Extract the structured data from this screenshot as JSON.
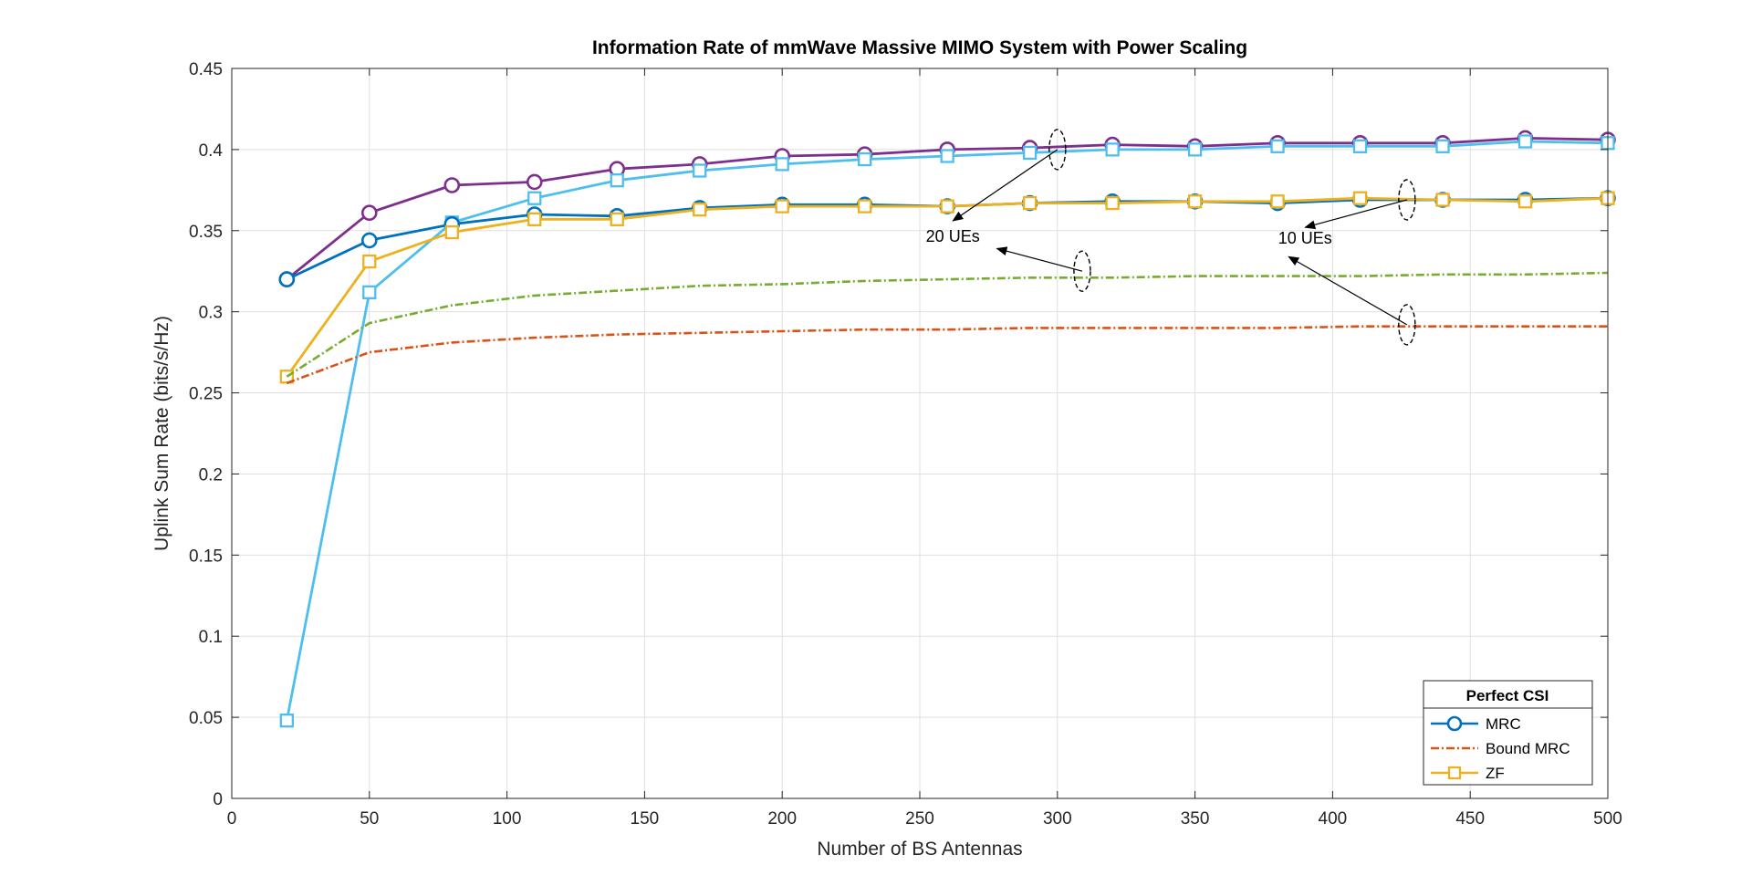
{
  "chart_data": {
    "type": "line",
    "title": "Information Rate of mmWave Massive MIMO System with Power Scaling",
    "xlabel": "Number of BS Antennas",
    "ylabel": "Uplink Sum Rate (bits/s/Hz)",
    "xlim": [
      0,
      500
    ],
    "ylim": [
      0,
      0.45
    ],
    "xticks": [
      0,
      50,
      100,
      150,
      200,
      250,
      300,
      350,
      400,
      450,
      500
    ],
    "yticks": [
      0,
      0.05,
      0.1,
      0.15,
      0.2,
      0.25,
      0.3,
      0.35,
      0.4,
      0.45
    ],
    "xtick_labels": [
      "0",
      "50",
      "100",
      "150",
      "200",
      "250",
      "300",
      "350",
      "400",
      "450",
      "500"
    ],
    "ytick_labels": [
      "0",
      "0.05",
      "0.1",
      "0.15",
      "0.2",
      "0.25",
      "0.3",
      "0.35",
      "0.4",
      "0.45"
    ],
    "grid": true,
    "legend": {
      "title": "Perfect CSI",
      "placement": "bottom-right",
      "entries": [
        {
          "label": "MRC",
          "color": "#0072BD",
          "marker": "circle",
          "dash": "solid"
        },
        {
          "label": "Bound MRC",
          "color": "#D95319",
          "marker": "none",
          "dash": "dashdot"
        },
        {
          "label": "ZF",
          "color": "#EDB120",
          "marker": "square",
          "dash": "solid"
        }
      ]
    },
    "series": [
      {
        "color": "#7E2F8E",
        "marker": "circle",
        "dash": "solid",
        "x": [
          20,
          50,
          80,
          110,
          140,
          170,
          200,
          230,
          260,
          290,
          320,
          350,
          380,
          410,
          440,
          470,
          500
        ],
        "y": [
          0.32,
          0.361,
          0.378,
          0.38,
          0.388,
          0.391,
          0.396,
          0.397,
          0.4,
          0.401,
          0.403,
          0.402,
          0.404,
          0.404,
          0.404,
          0.407,
          0.406
        ]
      },
      {
        "color": "#4DBEEE",
        "marker": "square",
        "dash": "solid",
        "x": [
          20,
          50,
          80,
          110,
          140,
          170,
          200,
          230,
          260,
          290,
          320,
          350,
          380,
          410,
          440,
          470,
          500
        ],
        "y": [
          0.048,
          0.312,
          0.355,
          0.37,
          0.381,
          0.387,
          0.391,
          0.394,
          0.396,
          0.398,
          0.4,
          0.4,
          0.402,
          0.402,
          0.402,
          0.405,
          0.404
        ]
      },
      {
        "color": "#0072BD",
        "marker": "circle",
        "dash": "solid",
        "x": [
          20,
          50,
          80,
          110,
          140,
          170,
          200,
          230,
          260,
          290,
          320,
          350,
          380,
          410,
          440,
          470,
          500
        ],
        "y": [
          0.32,
          0.344,
          0.354,
          0.36,
          0.359,
          0.364,
          0.366,
          0.366,
          0.365,
          0.367,
          0.368,
          0.368,
          0.367,
          0.369,
          0.369,
          0.369,
          0.37
        ]
      },
      {
        "color": "#EDB120",
        "marker": "square",
        "dash": "solid",
        "x": [
          20,
          50,
          80,
          110,
          140,
          170,
          200,
          230,
          260,
          290,
          320,
          350,
          380,
          410,
          440,
          470,
          500
        ],
        "y": [
          0.26,
          0.331,
          0.349,
          0.357,
          0.357,
          0.363,
          0.365,
          0.365,
          0.365,
          0.367,
          0.367,
          0.368,
          0.368,
          0.37,
          0.369,
          0.368,
          0.37
        ]
      },
      {
        "color": "#77AC30",
        "marker": "none",
        "dash": "dashdot",
        "x": [
          20,
          50,
          80,
          110,
          140,
          170,
          200,
          230,
          260,
          290,
          320,
          350,
          380,
          410,
          440,
          470,
          500
        ],
        "y": [
          0.26,
          0.293,
          0.304,
          0.31,
          0.313,
          0.316,
          0.317,
          0.319,
          0.32,
          0.321,
          0.321,
          0.322,
          0.322,
          0.322,
          0.323,
          0.323,
          0.324
        ]
      },
      {
        "color": "#D95319",
        "marker": "none",
        "dash": "dashdot",
        "x": [
          20,
          50,
          80,
          110,
          140,
          170,
          200,
          230,
          260,
          290,
          320,
          350,
          380,
          410,
          440,
          470,
          500
        ],
        "y": [
          0.256,
          0.275,
          0.281,
          0.284,
          0.286,
          0.287,
          0.288,
          0.289,
          0.289,
          0.29,
          0.29,
          0.29,
          0.29,
          0.291,
          0.291,
          0.291,
          0.291
        ]
      }
    ],
    "annotations": [
      {
        "text": "20 UEs",
        "text_at": [
          262,
          0.343
        ],
        "ellipses": [
          [
            300,
            0.4
          ],
          [
            309,
            0.325
          ]
        ],
        "arrows": [
          [
            [
              300,
              0.4
            ],
            [
              262,
              0.356
            ]
          ],
          [
            [
              309,
              0.325
            ],
            [
              278,
              0.339
            ]
          ]
        ]
      },
      {
        "text": "10 UEs",
        "text_at": [
          390,
          0.342
        ],
        "ellipses": [
          [
            427,
            0.369
          ],
          [
            427,
            0.292
          ]
        ],
        "arrows": [
          [
            [
              427,
              0.369
            ],
            [
              390,
              0.352
            ]
          ],
          [
            [
              427,
              0.292
            ],
            [
              384,
              0.334
            ]
          ]
        ]
      }
    ]
  }
}
